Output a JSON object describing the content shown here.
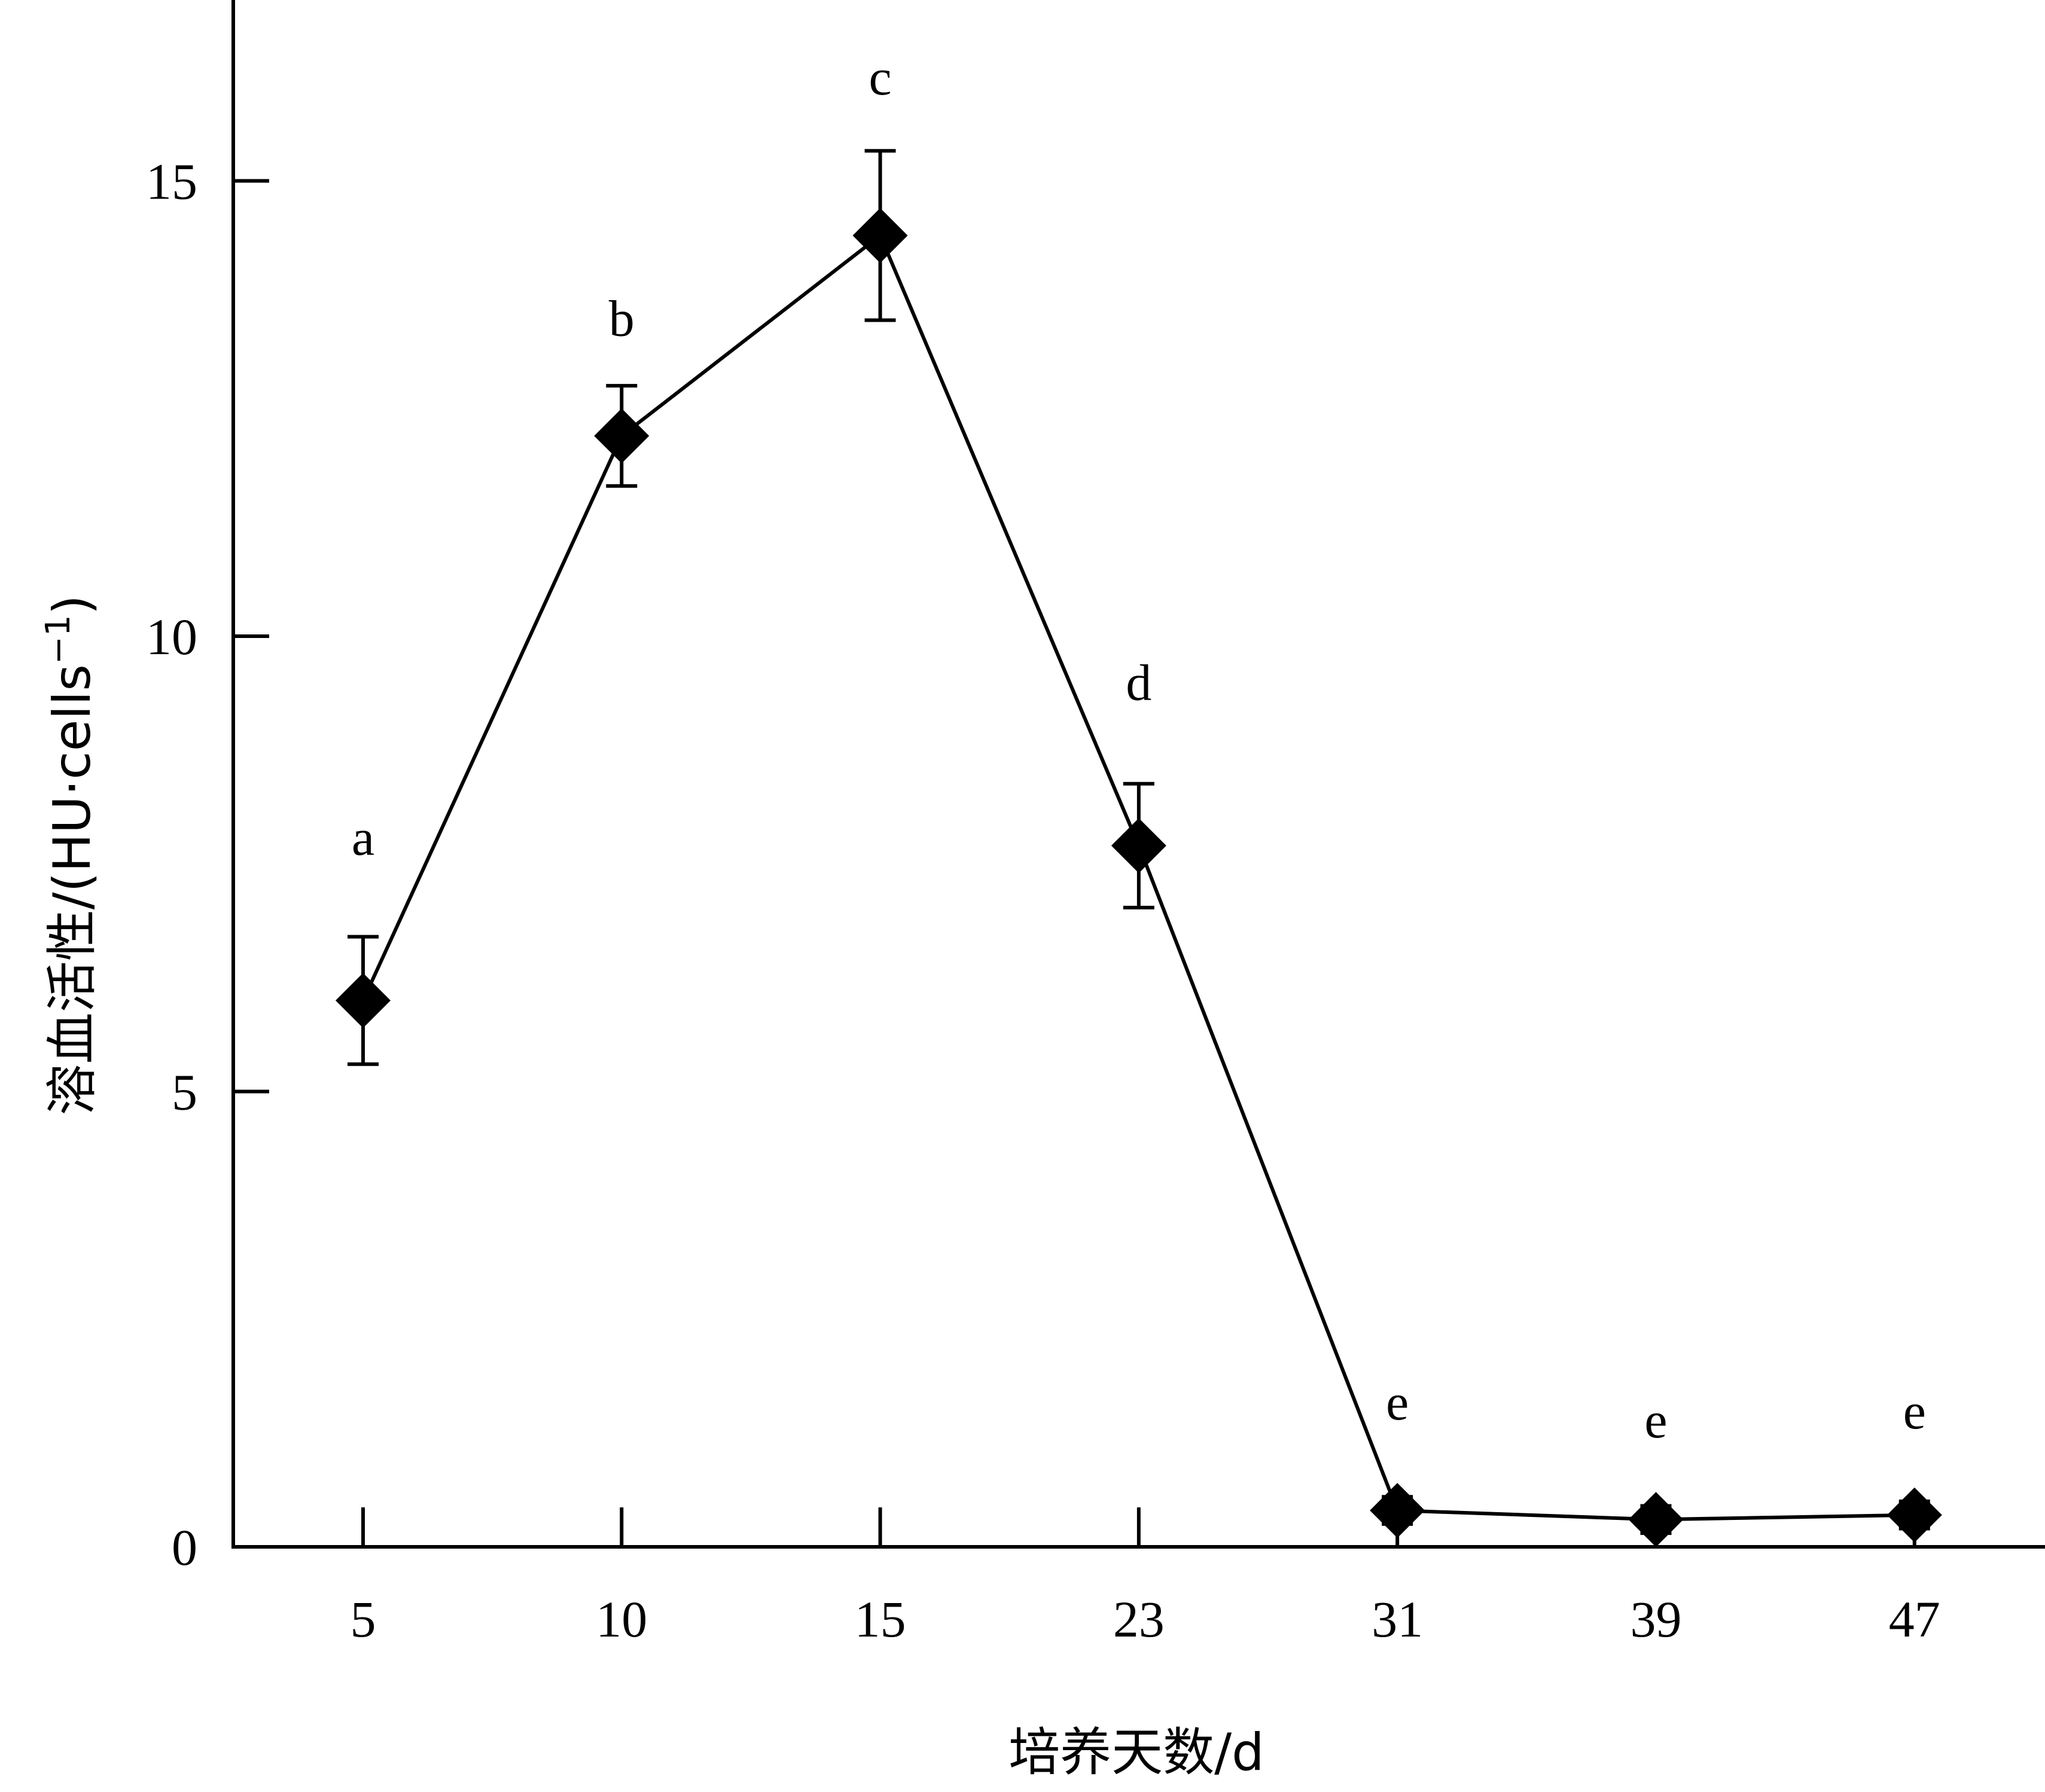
{
  "chart_data": {
    "type": "line",
    "xlabel": "培养天数/d",
    "ylabel": "溶血活性/(HU·cells",
    "ylabel_sup": "−1",
    "ylabel_close": ")",
    "categories": [
      "5",
      "10",
      "15",
      "23",
      "31",
      "39",
      "47"
    ],
    "values": [
      6.0,
      12.2,
      14.4,
      7.7,
      0.4,
      0.3,
      0.35
    ],
    "errors": [
      0.7,
      0.55,
      0.93,
      0.68,
      0.15,
      0.15,
      0.15
    ],
    "significance": [
      "a",
      "b",
      "c",
      "d",
      "e",
      "e",
      "e"
    ],
    "sig_values": [
      7.6,
      13.3,
      15.95,
      9.3,
      1.4,
      1.2,
      1.3
    ],
    "ylim": [
      0,
      17
    ],
    "yticks": [
      "0",
      "5",
      "10",
      "15"
    ],
    "ytick_values": [
      0,
      5,
      10,
      15
    ],
    "grid": false,
    "marker": "diamond",
    "color": "#000000"
  }
}
